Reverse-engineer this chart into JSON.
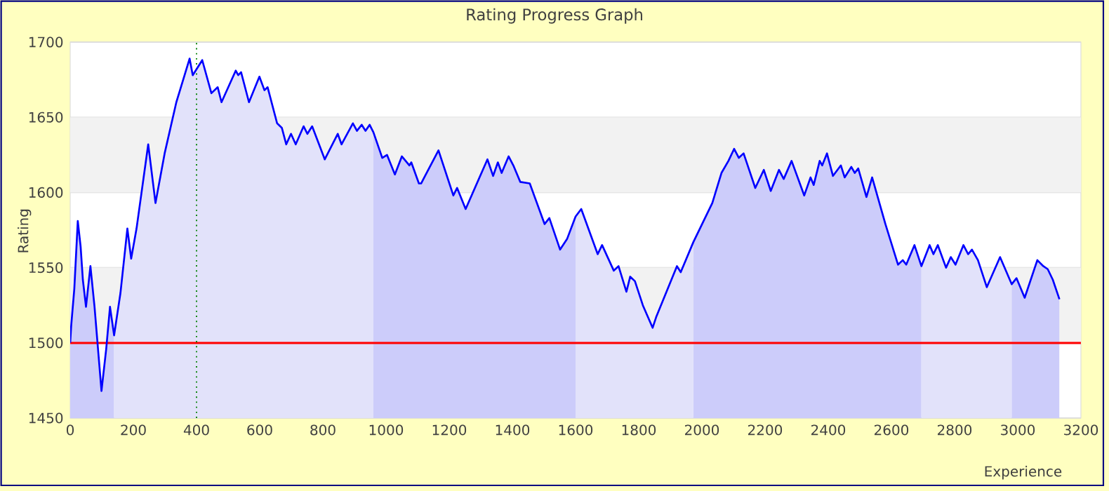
{
  "chart_data": {
    "type": "area",
    "title": "Rating Progress Graph",
    "xlabel": "Experience",
    "ylabel": "Rating",
    "series": [
      {
        "color": "#ccccfa",
        "x": [
          0,
          3,
          13,
          24,
          33,
          40,
          50,
          64,
          77,
          99,
          114,
          126,
          139
        ],
        "values": [
          1500,
          1511,
          1536,
          1581,
          1564,
          1542,
          1524,
          1551,
          1524,
          1468,
          1496,
          1524,
          1505
        ]
      },
      {
        "color": "#e2e2fa",
        "x": [
          139,
          159,
          181,
          193,
          210,
          247,
          270,
          299,
          336,
          378,
          388,
          418,
          447,
          467,
          479,
          524,
          532,
          541,
          566,
          599,
          615,
          625,
          655,
          670,
          684,
          699,
          714,
          739,
          751,
          766,
          806,
          847,
          859,
          895,
          908,
          923,
          935,
          948,
          960
        ],
        "values": [
          1505,
          1533,
          1576,
          1556,
          1576,
          1632,
          1593,
          1626,
          1660,
          1689,
          1678,
          1688,
          1666,
          1670,
          1660,
          1681,
          1678,
          1680,
          1660,
          1677,
          1668,
          1670,
          1646,
          1643,
          1632,
          1639,
          1632,
          1644,
          1639,
          1644,
          1622,
          1639,
          1632,
          1646,
          1641,
          1645,
          1641,
          1645,
          1640
        ]
      },
      {
        "color": "#ccccfa",
        "x": [
          960,
          988,
          1003,
          1028,
          1050,
          1074,
          1080,
          1104,
          1111,
          1166,
          1213,
          1225,
          1252,
          1321,
          1339,
          1354,
          1366,
          1388,
          1403,
          1425,
          1455,
          1502,
          1517,
          1551,
          1573,
          1600
        ],
        "values": [
          1640,
          1623,
          1625,
          1612,
          1624,
          1618,
          1620,
          1606,
          1606,
          1628,
          1598,
          1603,
          1589,
          1622,
          1611,
          1620,
          1613,
          1624,
          1618,
          1607,
          1606,
          1579,
          1583,
          1562,
          1569,
          1584
        ]
      },
      {
        "color": "#e2e2fa",
        "x": [
          1600,
          1618,
          1670,
          1684,
          1721,
          1736,
          1761,
          1773,
          1788,
          1813,
          1844,
          1855,
          1921,
          1933,
          1973
        ],
        "values": [
          1584,
          1589,
          1559,
          1565,
          1548,
          1551,
          1534,
          1544,
          1541,
          1525,
          1510,
          1517,
          1551,
          1547,
          1567
        ]
      },
      {
        "color": "#ccccfa",
        "x": [
          1973,
          2033,
          2062,
          2084,
          2102,
          2117,
          2132,
          2169,
          2196,
          2218,
          2244,
          2259,
          2284,
          2324,
          2344,
          2354,
          2373,
          2381,
          2396,
          2415,
          2440,
          2452,
          2473,
          2484,
          2495,
          2521,
          2539,
          2581,
          2621,
          2636,
          2647,
          2673,
          2695
        ],
        "values": [
          1567,
          1593,
          1613,
          1621,
          1629,
          1623,
          1626,
          1603,
          1615,
          1601,
          1615,
          1609,
          1621,
          1598,
          1610,
          1605,
          1621,
          1618,
          1626,
          1611,
          1618,
          1610,
          1617,
          1613,
          1616,
          1597,
          1610,
          1579,
          1552,
          1555,
          1552,
          1565,
          1551
        ]
      },
      {
        "color": "#e2e2fa",
        "x": [
          2695,
          2721,
          2733,
          2747,
          2773,
          2788,
          2803,
          2828,
          2843,
          2855,
          2874,
          2902,
          2944,
          2981
        ],
        "values": [
          1551,
          1565,
          1559,
          1565,
          1550,
          1557,
          1552,
          1565,
          1559,
          1562,
          1555,
          1537,
          1557,
          1539
        ]
      },
      {
        "color": "#ccccfa",
        "x": [
          2981,
          2996,
          3022,
          3062,
          3081,
          3095,
          3111,
          3132
        ],
        "values": [
          1539,
          1543,
          1530,
          1555,
          1551,
          1549,
          1542,
          1529
        ]
      },
      {
        "type": "line",
        "color": "#0000ff",
        "x": [
          0,
          3,
          13,
          24,
          33,
          40,
          50,
          64,
          77,
          99,
          114,
          126,
          139,
          159,
          181,
          193,
          210,
          247,
          270,
          299,
          336,
          378,
          388,
          418,
          447,
          467,
          479,
          524,
          532,
          541,
          566,
          599,
          615,
          625,
          655,
          670,
          684,
          699,
          714,
          739,
          751,
          766,
          806,
          847,
          859,
          895,
          908,
          923,
          935,
          948,
          960,
          988,
          1003,
          1028,
          1050,
          1074,
          1080,
          1104,
          1111,
          1166,
          1213,
          1225,
          1252,
          1321,
          1339,
          1354,
          1366,
          1388,
          1403,
          1425,
          1455,
          1502,
          1517,
          1551,
          1573,
          1600,
          1618,
          1670,
          1684,
          1721,
          1736,
          1761,
          1773,
          1788,
          1813,
          1844,
          1855,
          1921,
          1933,
          1973,
          2033,
          2062,
          2084,
          2102,
          2117,
          2132,
          2169,
          2196,
          2218,
          2244,
          2259,
          2284,
          2324,
          2344,
          2354,
          2373,
          2381,
          2396,
          2415,
          2440,
          2452,
          2473,
          2484,
          2495,
          2521,
          2539,
          2581,
          2621,
          2636,
          2647,
          2673,
          2695,
          2721,
          2733,
          2747,
          2773,
          2788,
          2803,
          2828,
          2843,
          2855,
          2874,
          2902,
          2944,
          2981,
          2996,
          3022,
          3062,
          3081,
          3095,
          3111,
          3132
        ],
        "values": [
          1500,
          1511,
          1536,
          1581,
          1564,
          1542,
          1524,
          1551,
          1524,
          1468,
          1496,
          1524,
          1505,
          1533,
          1576,
          1556,
          1576,
          1632,
          1593,
          1626,
          1660,
          1689,
          1678,
          1688,
          1666,
          1670,
          1660,
          1681,
          1678,
          1680,
          1660,
          1677,
          1668,
          1670,
          1646,
          1643,
          1632,
          1639,
          1632,
          1644,
          1639,
          1644,
          1622,
          1639,
          1632,
          1646,
          1641,
          1645,
          1641,
          1645,
          1640,
          1623,
          1625,
          1612,
          1624,
          1618,
          1620,
          1606,
          1606,
          1628,
          1598,
          1603,
          1589,
          1622,
          1611,
          1620,
          1613,
          1624,
          1618,
          1607,
          1606,
          1579,
          1583,
          1562,
          1569,
          1584,
          1589,
          1559,
          1565,
          1548,
          1551,
          1534,
          1544,
          1541,
          1525,
          1510,
          1517,
          1551,
          1547,
          1567,
          1593,
          1613,
          1621,
          1629,
          1623,
          1626,
          1603,
          1615,
          1601,
          1615,
          1609,
          1621,
          1598,
          1610,
          1605,
          1621,
          1618,
          1626,
          1611,
          1618,
          1610,
          1617,
          1613,
          1616,
          1597,
          1610,
          1579,
          1552,
          1555,
          1552,
          1565,
          1551,
          1565,
          1559,
          1565,
          1550,
          1557,
          1552,
          1565,
          1559,
          1562,
          1555,
          1537,
          1557,
          1539,
          1543,
          1530,
          1555,
          1551,
          1549,
          1542,
          1529
        ]
      }
    ],
    "xlim": [
      0,
      3200
    ],
    "ylim": [
      1450,
      1700
    ],
    "xticks": [
      0,
      200,
      400,
      600,
      800,
      1000,
      1200,
      1400,
      1600,
      1800,
      2000,
      2200,
      2400,
      2600,
      2800,
      3000,
      3200
    ],
    "yticks": [
      1450,
      1500,
      1550,
      1600,
      1650,
      1700
    ],
    "grid": "y",
    "bands": [
      {
        "axis": "y",
        "from": 1600,
        "to": 1650,
        "color": "#f2f2f2"
      },
      {
        "axis": "y",
        "from": 1500,
        "to": 1550,
        "color": "#f2f2f2"
      }
    ],
    "ref_lines": [
      {
        "axis": "y",
        "value": 1500,
        "color": "#ff0000",
        "line_style": "solid"
      },
      {
        "axis": "x",
        "value": 400,
        "color": "#008000",
        "line_style": "dotted"
      }
    ]
  }
}
